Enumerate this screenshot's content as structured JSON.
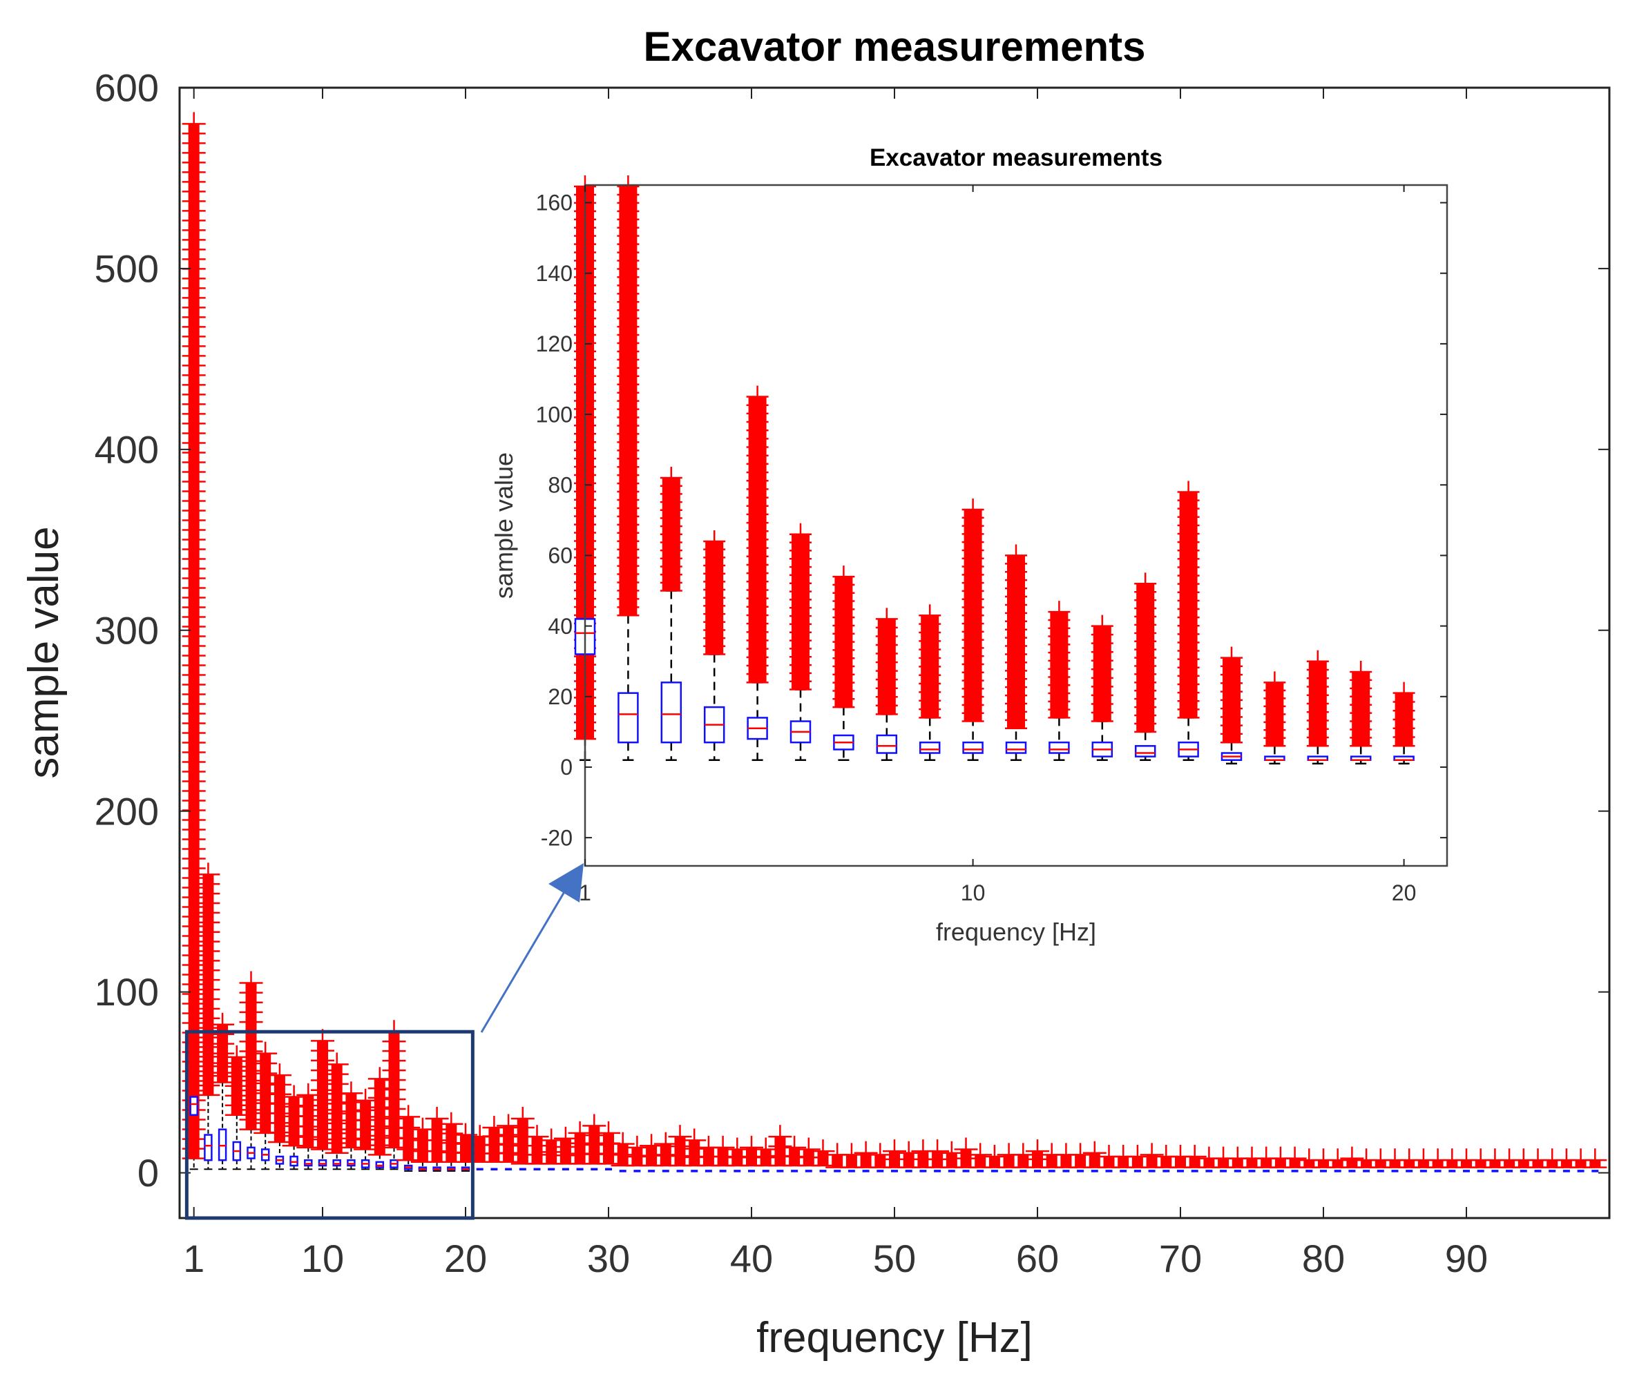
{
  "chart_data": [
    {
      "type": "box",
      "title": "Excavator measurements",
      "xlabel": "frequency [Hz]",
      "ylabel": "sample value",
      "xlim": [
        0,
        100
      ],
      "ylim": [
        -25,
        600
      ],
      "x_ticks": [
        1,
        10,
        20,
        30,
        40,
        50,
        60,
        70,
        80,
        90
      ],
      "y_ticks": [
        0,
        100,
        200,
        300,
        400,
        500,
        600
      ],
      "zoom_box": {
        "x": [
          0.5,
          20.5
        ],
        "y": [
          -25,
          78
        ]
      },
      "series": [
        {
          "x": [
            1,
            2,
            3,
            4,
            5,
            6,
            7,
            8,
            9,
            10,
            11,
            12,
            13,
            14,
            15,
            16,
            17,
            18,
            19,
            20
          ],
          "median": [
            38,
            15,
            15,
            12,
            11,
            10,
            7,
            6,
            5,
            5,
            5,
            5,
            5,
            4,
            5,
            3,
            2,
            2,
            2,
            2
          ],
          "q1": [
            32,
            7,
            7,
            7,
            8,
            7,
            5,
            4,
            4,
            4,
            4,
            4,
            3,
            3,
            3,
            2,
            2,
            2,
            2,
            2
          ],
          "q3": [
            42,
            21,
            24,
            17,
            14,
            13,
            9,
            9,
            7,
            7,
            7,
            7,
            7,
            6,
            7,
            4,
            3,
            3,
            3,
            3
          ],
          "whisker_low": [
            2,
            2,
            2,
            2,
            2,
            2,
            2,
            2,
            2,
            2,
            2,
            2,
            2,
            2,
            2,
            1,
            1,
            1,
            1,
            1
          ],
          "whisker_high": [
            58,
            43,
            50,
            32,
            24,
            22,
            17,
            15,
            14,
            14,
            14,
            14,
            13,
            10,
            14,
            7,
            6,
            6,
            6,
            6
          ],
          "outlier_min": [
            8,
            43,
            50,
            32,
            24,
            22,
            17,
            15,
            14,
            13,
            11,
            14,
            13,
            10,
            14,
            7,
            6,
            6,
            6,
            6
          ],
          "outlier_max": [
            580,
            165,
            82,
            64,
            105,
            66,
            54,
            42,
            43,
            73,
            60,
            44,
            40,
            52,
            78,
            31,
            24,
            30,
            27,
            21
          ]
        },
        {
          "x": [
            21,
            22,
            23,
            24,
            25,
            26,
            27,
            28,
            29,
            30,
            31,
            32,
            33,
            34,
            35,
            36,
            37,
            38,
            39,
            40,
            41,
            42,
            43,
            44,
            45,
            46,
            47,
            48,
            49,
            50,
            51,
            52,
            53,
            54,
            55,
            56,
            57,
            58,
            59,
            60,
            61,
            62,
            63,
            64,
            65,
            66,
            67,
            68,
            69,
            70,
            71,
            72,
            73,
            74,
            75,
            76,
            77,
            78,
            79,
            80,
            81,
            82,
            83,
            84,
            85,
            86,
            87,
            88,
            89,
            90,
            91,
            92,
            93,
            94,
            95,
            96,
            97,
            98,
            99,
            100
          ],
          "median": [
            2,
            2,
            2,
            2,
            2,
            2,
            2,
            2,
            2,
            2,
            1,
            1,
            1,
            1,
            1,
            1,
            1,
            1,
            1,
            1,
            1,
            1,
            1,
            1,
            1,
            1,
            1,
            1,
            1,
            1,
            1,
            1,
            1,
            1,
            1,
            1,
            1,
            1,
            1,
            1,
            1,
            1,
            1,
            1,
            1,
            1,
            1,
            1,
            1,
            1,
            1,
            1,
            1,
            1,
            1,
            1,
            1,
            1,
            1,
            1,
            1,
            1,
            1,
            1,
            1,
            1,
            1,
            1,
            1,
            1,
            1,
            1,
            1,
            1,
            1,
            1,
            1,
            1,
            1,
            1
          ],
          "outlier_min": [
            6,
            6,
            6,
            5,
            5,
            5,
            5,
            5,
            5,
            5,
            4,
            4,
            4,
            4,
            4,
            4,
            4,
            4,
            4,
            4,
            4,
            4,
            4,
            4,
            4,
            3,
            3,
            3,
            3,
            3,
            3,
            3,
            3,
            3,
            3,
            3,
            3,
            3,
            3,
            3,
            3,
            3,
            3,
            3,
            3,
            3,
            3,
            3,
            3,
            3,
            3,
            3,
            3,
            3,
            3,
            3,
            3,
            3,
            3,
            3,
            3,
            3,
            3,
            3,
            3,
            3,
            3,
            3,
            3,
            3,
            3,
            3,
            3,
            3,
            3,
            3,
            3,
            3,
            3,
            3
          ],
          "outlier_max": [
            20,
            25,
            26,
            30,
            20,
            18,
            19,
            22,
            26,
            22,
            16,
            14,
            15,
            16,
            20,
            18,
            14,
            14,
            13,
            14,
            13,
            20,
            14,
            13,
            12,
            10,
            10,
            11,
            10,
            12,
            11,
            12,
            12,
            11,
            13,
            10,
            9,
            10,
            10,
            12,
            10,
            10,
            10,
            11,
            9,
            9,
            9,
            10,
            9,
            9,
            9,
            8,
            8,
            8,
            8,
            8,
            8,
            8,
            7,
            7,
            7,
            8,
            7,
            7,
            7,
            7,
            7,
            7,
            7,
            7,
            7,
            7,
            7,
            7,
            7,
            7,
            7,
            7,
            7,
            7
          ]
        }
      ]
    },
    {
      "type": "box",
      "title": "Excavator measurements",
      "xlabel": "frequency [Hz]",
      "ylabel": "sample value",
      "xlim": [
        1,
        21
      ],
      "ylim": [
        -28,
        165
      ],
      "x_ticks": [
        1,
        10,
        20
      ],
      "y_ticks": [
        -20,
        0,
        20,
        40,
        60,
        80,
        100,
        120,
        140,
        160
      ]
    }
  ],
  "colors": {
    "box": "#1010ff",
    "median": "#ff0000",
    "outlier": "#ff0000",
    "whisker": "#000000",
    "zoom_box": "#1f3a70",
    "arrow": "#4472c4"
  }
}
